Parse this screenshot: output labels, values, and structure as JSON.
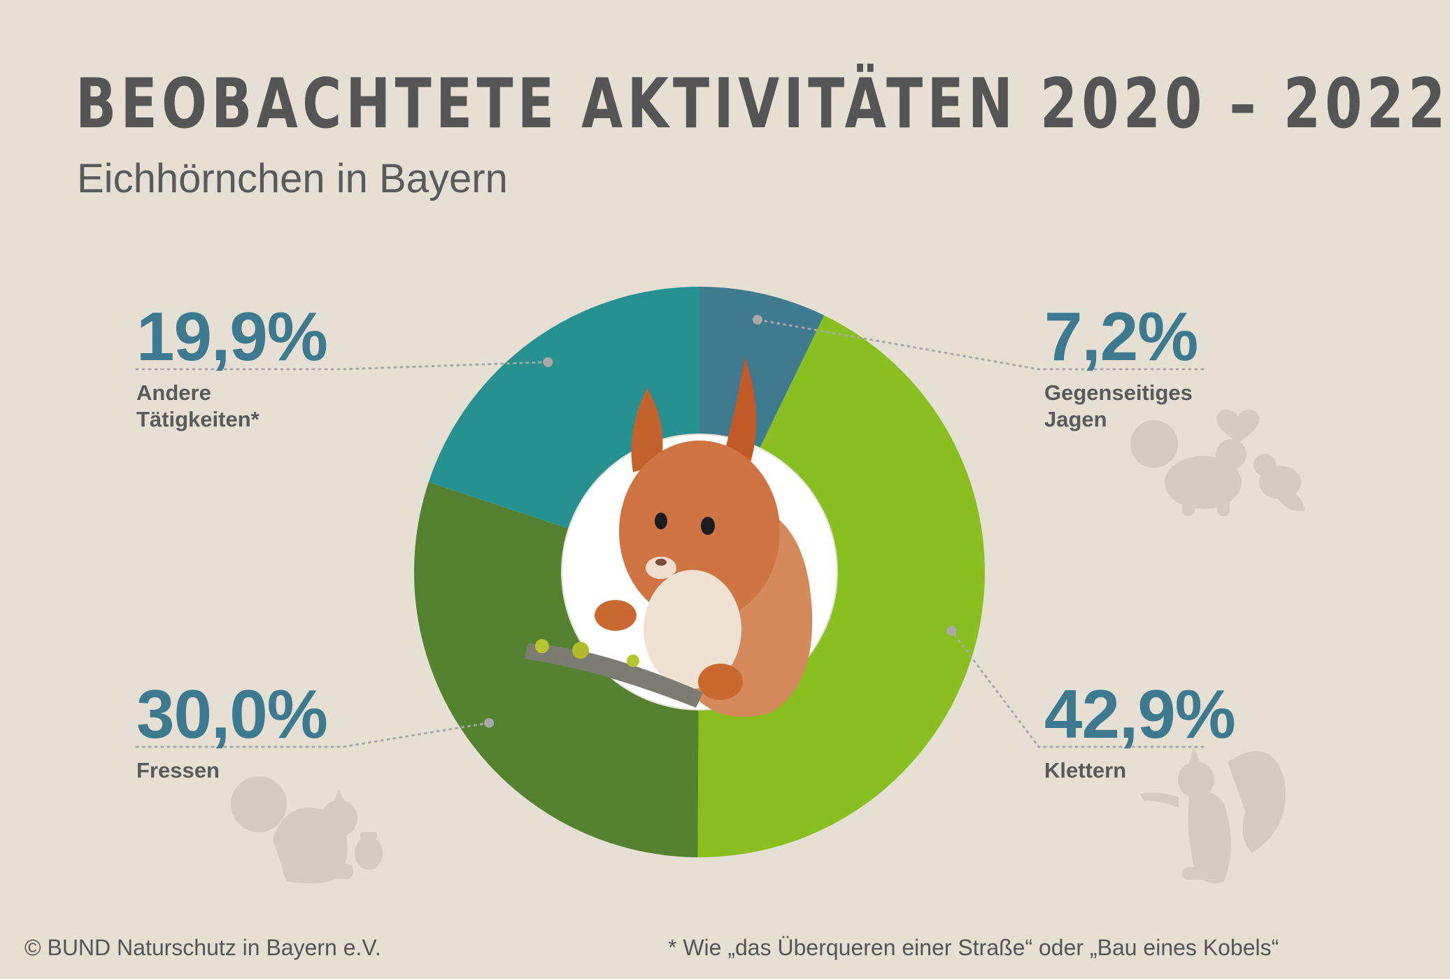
{
  "header": {
    "title": "BEOBACHTETE AKTIVITÄTEN 2020 – 2022",
    "subtitle": "Eichhörnchen in Bayern"
  },
  "chart_data": {
    "type": "pie",
    "subtype": "donut",
    "title": "BEOBACHTETE AKTIVITÄTEN 2020 – 2022",
    "subtitle": "Eichhörnchen in Bayern",
    "slices": [
      {
        "label": "Gegenseitiges Jagen",
        "value": 7.2,
        "display": "7,2%",
        "color": "#3f7a8f"
      },
      {
        "label": "Klettern",
        "value": 42.9,
        "display": "42,9%",
        "color": "#8abf22"
      },
      {
        "label": "Fressen",
        "value": 30.0,
        "display": "30,0%",
        "color": "#558230"
      },
      {
        "label": "Andere Tätigkeiten*",
        "value": 19.9,
        "display": "19,9%",
        "color": "#279191"
      }
    ],
    "start": "top",
    "direction": "clockwise"
  },
  "labels": {
    "andere": {
      "pct": "19,9%",
      "line1": "Andere",
      "line2": "Tätigkeiten*"
    },
    "jagen": {
      "pct": "7,2%",
      "line1": "Gegenseitiges",
      "line2": "Jagen"
    },
    "fressen": {
      "pct": "30,0%",
      "line1": "Fressen"
    },
    "klettern": {
      "pct": "42,9%",
      "line1": "Klettern"
    }
  },
  "footer": {
    "copyright": "© BUND Naturschutz in Bayern e.V.",
    "note": "* Wie „das Überqueren einer Straße“ oder „Bau eines Kobels“"
  },
  "center_image": "squirrel-photo",
  "decorations": [
    "squirrels-playing-icon",
    "squirrel-eating-icon",
    "squirrel-standing-icon"
  ]
}
